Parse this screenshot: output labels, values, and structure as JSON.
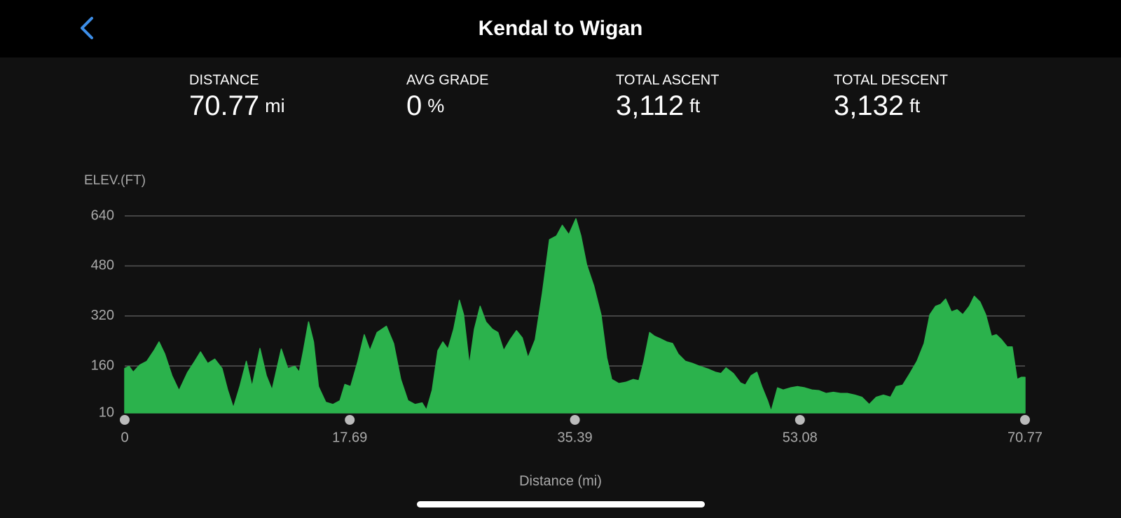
{
  "header": {
    "title": "Kendal to Wigan"
  },
  "stats": [
    {
      "label": "DISTANCE",
      "value": "70.77",
      "unit": "mi"
    },
    {
      "label": "AVG GRADE",
      "value": "0",
      "unit": "%"
    },
    {
      "label": "TOTAL ASCENT",
      "value": "3,112",
      "unit": "ft"
    },
    {
      "label": "TOTAL DESCENT",
      "value": "3,132",
      "unit": "ft"
    }
  ],
  "chart_data": {
    "type": "area",
    "ylabel": "ELEV.(FT)",
    "xlabel": "Distance (mi)",
    "color": "#2bb24c",
    "xlim": [
      0,
      70.77
    ],
    "xticks": [
      0,
      17.69,
      35.39,
      53.08,
      70.77
    ],
    "ylim": [
      10,
      640
    ],
    "yticks": [
      10,
      160,
      320,
      480,
      640
    ],
    "grid": true,
    "x": [
      0,
      0.34,
      0.67,
      1.18,
      1.74,
      2.3,
      2.7,
      3.15,
      3.71,
      4.27,
      4.95,
      5.51,
      5.96,
      6.52,
      7.08,
      7.65,
      8.09,
      8.54,
      9.05,
      9.56,
      10.01,
      10.63,
      11.13,
      11.58,
      12.31,
      12.82,
      13.38,
      13.72,
      14.05,
      14.45,
      14.84,
      15.23,
      15.8,
      16.36,
      16.92,
      17.31,
      17.76,
      18.33,
      18.83,
      19.28,
      19.84,
      20.57,
      21.14,
      21.7,
      22.26,
      22.82,
      23.38,
      23.72,
      24.17,
      24.62,
      25.01,
      25.41,
      25.86,
      26.31,
      26.64,
      27.09,
      27.49,
      27.94,
      28.39,
      28.89,
      29.34,
      29.79,
      30.3,
      30.8,
      31.25,
      31.7,
      32.27,
      32.83,
      33.39,
      33.95,
      34.4,
      34.91,
      35.47,
      35.86,
      36.31,
      36.87,
      37.44,
      37.89,
      38.28,
      38.84,
      39.4,
      39.97,
      40.42,
      40.81,
      41.26,
      41.65,
      42.05,
      42.61,
      43.06,
      43.51,
      44.07,
      44.63,
      45.19,
      45.87,
      46.43,
      46.88,
      47.27,
      47.84,
      48.4,
      48.79,
      49.24,
      49.69,
      50.08,
      50.53,
      50.81,
      51.32,
      51.77,
      52.33,
      52.89,
      53.46,
      54.02,
      54.58,
      55.14,
      55.71,
      56.27,
      56.83,
      57.39,
      57.95,
      58.52,
      59.08,
      59.64,
      60.2,
      60.65,
      61.16,
      61.72,
      62.28,
      62.84,
      63.29,
      63.74,
      64.14,
      64.53,
      64.98,
      65.43,
      65.88,
      66.39,
      66.78,
      67.23,
      67.68,
      68.13,
      68.52,
      68.92,
      69.37,
      69.76,
      70.15,
      70.49,
      70.77
    ],
    "values": [
      152,
      159,
      140,
      163,
      175,
      209,
      237,
      198,
      129,
      81,
      140,
      175,
      205,
      168,
      182,
      152,
      83,
      26,
      94,
      175,
      94,
      216,
      129,
      83,
      214,
      152,
      159,
      140,
      209,
      301,
      237,
      94,
      44,
      37,
      49,
      101,
      94,
      175,
      260,
      209,
      267,
      287,
      232,
      117,
      49,
      37,
      42,
      19,
      83,
      209,
      237,
      214,
      278,
      370,
      324,
      163,
      278,
      351,
      301,
      278,
      267,
      209,
      244,
      273,
      250,
      186,
      244,
      393,
      564,
      576,
      610,
      580,
      631,
      576,
      484,
      416,
      324,
      186,
      117,
      104,
      108,
      117,
      113,
      175,
      267,
      255,
      248,
      237,
      232,
      198,
      175,
      168,
      159,
      150,
      140,
      136,
      154,
      136,
      106,
      99,
      129,
      140,
      94,
      49,
      15,
      90,
      83,
      90,
      94,
      90,
      83,
      81,
      72,
      76,
      72,
      72,
      67,
      60,
      37,
      60,
      67,
      60,
      94,
      99,
      136,
      175,
      232,
      324,
      351,
      357,
      374,
      333,
      340,
      324,
      351,
      383,
      365,
      324,
      255,
      260,
      244,
      221,
      221,
      117,
      124,
      124
    ]
  }
}
